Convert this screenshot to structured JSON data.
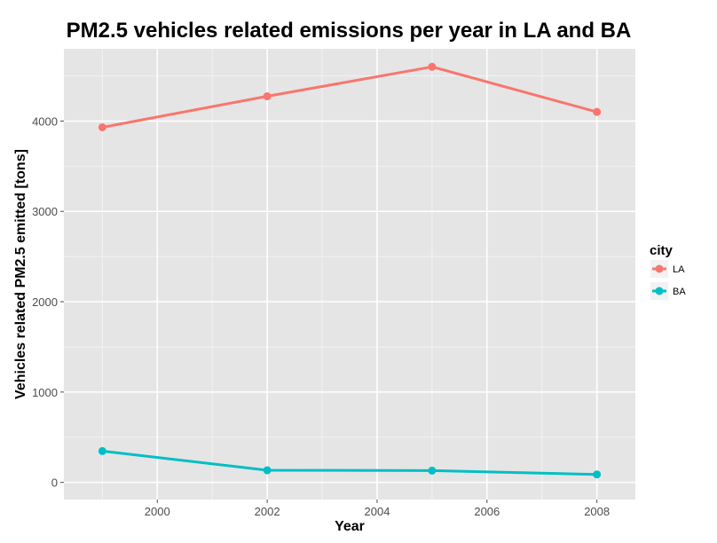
{
  "chart_data": {
    "type": "line",
    "title": "PM2.5 vehicles related emissions per year in LA and BA",
    "xlabel": "Year",
    "ylabel": "Vehicles related PM2.5 emitted [tons]",
    "x": [
      1999,
      2002,
      2005,
      2008
    ],
    "xlim": [
      1998.3,
      2008.7
    ],
    "ylim": [
      -190,
      4800
    ],
    "x_ticks": [
      2000,
      2002,
      2004,
      2006,
      2008
    ],
    "y_ticks": [
      0,
      1000,
      2000,
      3000,
      4000
    ],
    "grid": true,
    "legend": {
      "title": "city",
      "position": "right"
    },
    "series": [
      {
        "name": "LA",
        "color": "#F8766D",
        "values": [
          3931,
          4274,
          4601,
          4101
        ]
      },
      {
        "name": "BA",
        "color": "#00BFC4",
        "values": [
          346,
          134,
          130,
          88
        ]
      }
    ]
  }
}
